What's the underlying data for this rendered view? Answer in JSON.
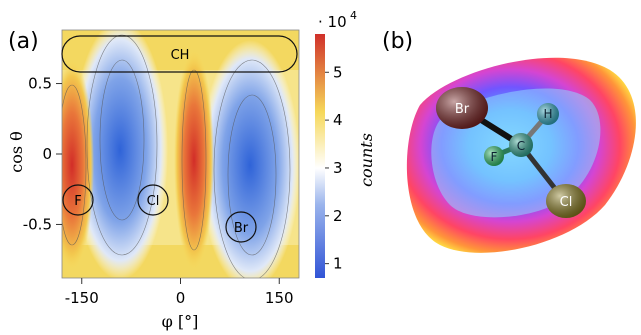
{
  "panel_a": {
    "label": "(a)",
    "x_axis": {
      "label": "φ [°]",
      "ticks": [
        "-150",
        "0",
        "150"
      ],
      "tick_values": [
        -150,
        0,
        150
      ],
      "range": [
        -180,
        180
      ]
    },
    "y_axis": {
      "label": "cos θ",
      "ticks": [
        "0.5",
        "0",
        "-0.5"
      ],
      "tick_values": [
        0.5,
        0,
        -0.5
      ],
      "range": [
        -0.88,
        0.88
      ]
    },
    "colorbar": {
      "multiplier": "· 10",
      "exponent": "4",
      "label": "counts",
      "ticks": [
        "5",
        "4",
        "3",
        "2",
        "1"
      ],
      "tick_values": [
        5,
        4,
        3,
        2,
        1
      ],
      "range": [
        0.7,
        5.8
      ],
      "colors": [
        "#3154d6",
        "#9ab4ec",
        "#ffffff",
        "#f6d85a",
        "#d0302a"
      ]
    },
    "region_labels": [
      "CH",
      "F",
      "Cl",
      "Br"
    ]
  },
  "panel_b": {
    "label": "(b)",
    "atoms": [
      "Br",
      "H",
      "C",
      "F",
      "Cl"
    ],
    "atom_colors": {
      "Br": "#7a2323",
      "H": "#2ea6bd",
      "C": "#2ea38f",
      "F": "#2fbf6a",
      "Cl": "#8a7c1e"
    }
  }
}
